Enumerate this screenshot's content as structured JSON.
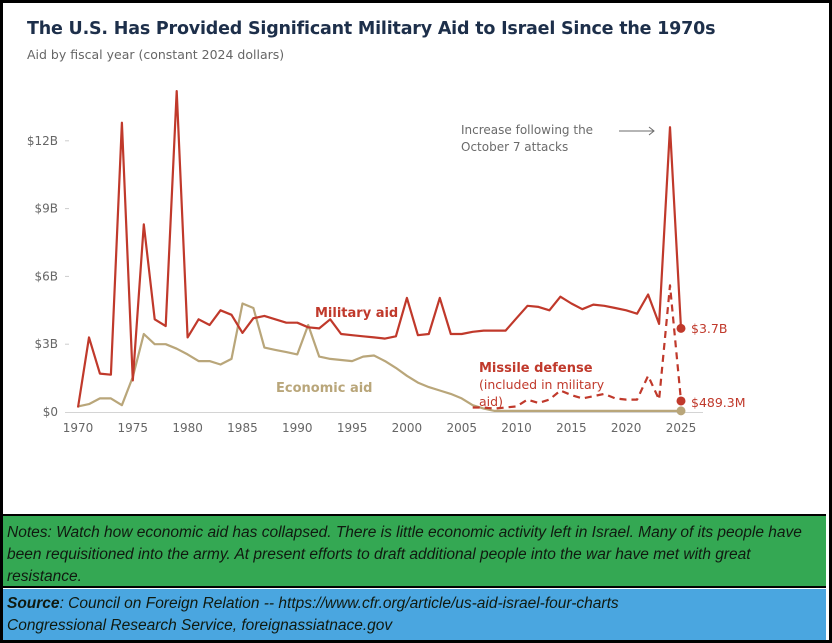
{
  "chart_data": {
    "type": "line",
    "title": "The U.S. Has Provided Significant Military Aid to Israel Since the 1970s",
    "subtitle": "Aid by fiscal year (constant 2024 dollars)",
    "xlabel": "",
    "ylabel": "",
    "xlim": [
      1970,
      2025
    ],
    "ylim": [
      0,
      14.5
    ],
    "grid": false,
    "x_ticks": [
      1970,
      1975,
      1980,
      1985,
      1990,
      1995,
      2000,
      2005,
      2010,
      2015,
      2020,
      2025
    ],
    "x_tick_labels": [
      "1970",
      "1975",
      "1980",
      "1985",
      "1990",
      "1995",
      "2000",
      "2005",
      "2010",
      "2015",
      "2020",
      "2025"
    ],
    "y_ticks": [
      0,
      3,
      6,
      9,
      12
    ],
    "y_tick_labels": [
      "$0",
      "$3B",
      "$6B",
      "$9B",
      "$12B"
    ],
    "units": "billions USD (constant 2024)",
    "series": [
      {
        "name": "Military aid",
        "label": "Military aid",
        "color": "#c0392b",
        "style": "solid",
        "x": [
          1970,
          1971,
          1972,
          1973,
          1974,
          1975,
          1976,
          1977,
          1978,
          1979,
          1980,
          1981,
          1982,
          1983,
          1984,
          1985,
          1986,
          1987,
          1988,
          1989,
          1990,
          1991,
          1992,
          1993,
          1994,
          1995,
          1996,
          1997,
          1998,
          1999,
          2000,
          2001,
          2002,
          2003,
          2004,
          2005,
          2006,
          2007,
          2008,
          2009,
          2010,
          2011,
          2012,
          2013,
          2014,
          2015,
          2016,
          2017,
          2018,
          2019,
          2020,
          2021,
          2022,
          2023,
          2024,
          2025
        ],
        "values": [
          0.2,
          3.3,
          1.7,
          1.65,
          12.8,
          1.4,
          8.3,
          4.1,
          3.8,
          14.2,
          3.3,
          4.1,
          3.85,
          4.5,
          4.3,
          3.5,
          4.15,
          4.25,
          4.1,
          3.95,
          3.95,
          3.75,
          3.7,
          4.1,
          3.45,
          3.4,
          3.35,
          3.3,
          3.25,
          3.35,
          5.05,
          3.4,
          3.45,
          5.05,
          3.45,
          3.45,
          3.55,
          3.6,
          3.6,
          3.6,
          4.15,
          4.7,
          4.65,
          4.5,
          5.1,
          4.8,
          4.55,
          4.75,
          4.7,
          4.6,
          4.5,
          4.35,
          5.2,
          3.9,
          12.6,
          3.7
        ],
        "end_label": "$3.7B"
      },
      {
        "name": "Economic aid",
        "label": "Economic aid",
        "color": "#b9a67a",
        "style": "solid",
        "x": [
          1970,
          1971,
          1972,
          1973,
          1974,
          1975,
          1976,
          1977,
          1978,
          1979,
          1980,
          1981,
          1982,
          1983,
          1984,
          1985,
          1986,
          1987,
          1988,
          1989,
          1990,
          1991,
          1992,
          1993,
          1994,
          1995,
          1996,
          1997,
          1998,
          1999,
          2000,
          2001,
          2002,
          2003,
          2004,
          2005,
          2006,
          2007,
          2008,
          2009,
          2010,
          2011,
          2012,
          2013,
          2014,
          2015,
          2016,
          2017,
          2018,
          2019,
          2020,
          2021,
          2022,
          2023,
          2024,
          2025
        ],
        "values": [
          0.25,
          0.35,
          0.6,
          0.6,
          0.3,
          1.55,
          3.45,
          3.0,
          3.0,
          2.8,
          2.55,
          2.25,
          2.25,
          2.1,
          2.35,
          4.8,
          4.6,
          2.85,
          2.75,
          2.65,
          2.55,
          3.85,
          2.45,
          2.35,
          2.3,
          2.25,
          2.45,
          2.5,
          2.25,
          1.95,
          1.6,
          1.3,
          1.1,
          0.95,
          0.8,
          0.6,
          0.3,
          0.15,
          0.05,
          0.05,
          0.05,
          0.05,
          0.05,
          0.05,
          0.05,
          0.05,
          0.05,
          0.05,
          0.05,
          0.05,
          0.05,
          0.05,
          0.05,
          0.05,
          0.05,
          0.05
        ],
        "end_label": ""
      },
      {
        "name": "Missile defense",
        "label": "Missile defense",
        "sublabel": "(included in military aid)",
        "color": "#c0392b",
        "style": "dashed",
        "x": [
          2006,
          2007,
          2008,
          2009,
          2010,
          2011,
          2012,
          2013,
          2014,
          2015,
          2016,
          2017,
          2018,
          2019,
          2020,
          2021,
          2022,
          2023,
          2024,
          2025
        ],
        "values": [
          0.2,
          0.2,
          0.15,
          0.2,
          0.25,
          0.55,
          0.4,
          0.55,
          0.95,
          0.75,
          0.6,
          0.7,
          0.8,
          0.6,
          0.55,
          0.55,
          1.6,
          0.55,
          5.6,
          0.489
        ],
        "end_label": "$489.3M"
      }
    ],
    "annotations": [
      {
        "text_line1": "Increase following the",
        "text_line2": "October 7 attacks",
        "points_to": {
          "x": 2024,
          "y": 12.6
        }
      }
    ]
  },
  "notes": {
    "text": "Notes: Watch how economic aid has collapsed.  There is little economic activity left in Israel.  Many of its people have been requisitioned into the army.  At present  efforts to draft additional people into the war have met with great resistance."
  },
  "source": {
    "label": "Source",
    "line1": ": Council on Foreign Relation -- https://www.cfr.org/article/us-aid-israel-four-charts",
    "line2": "Congressional Research Service, foreignassiatnace.gov"
  },
  "colors": {
    "military": "#c0392b",
    "economic": "#b9a67a",
    "title": "#1d2f4a",
    "notes_bg": "#34a853",
    "source_bg": "#4aa6e0"
  }
}
